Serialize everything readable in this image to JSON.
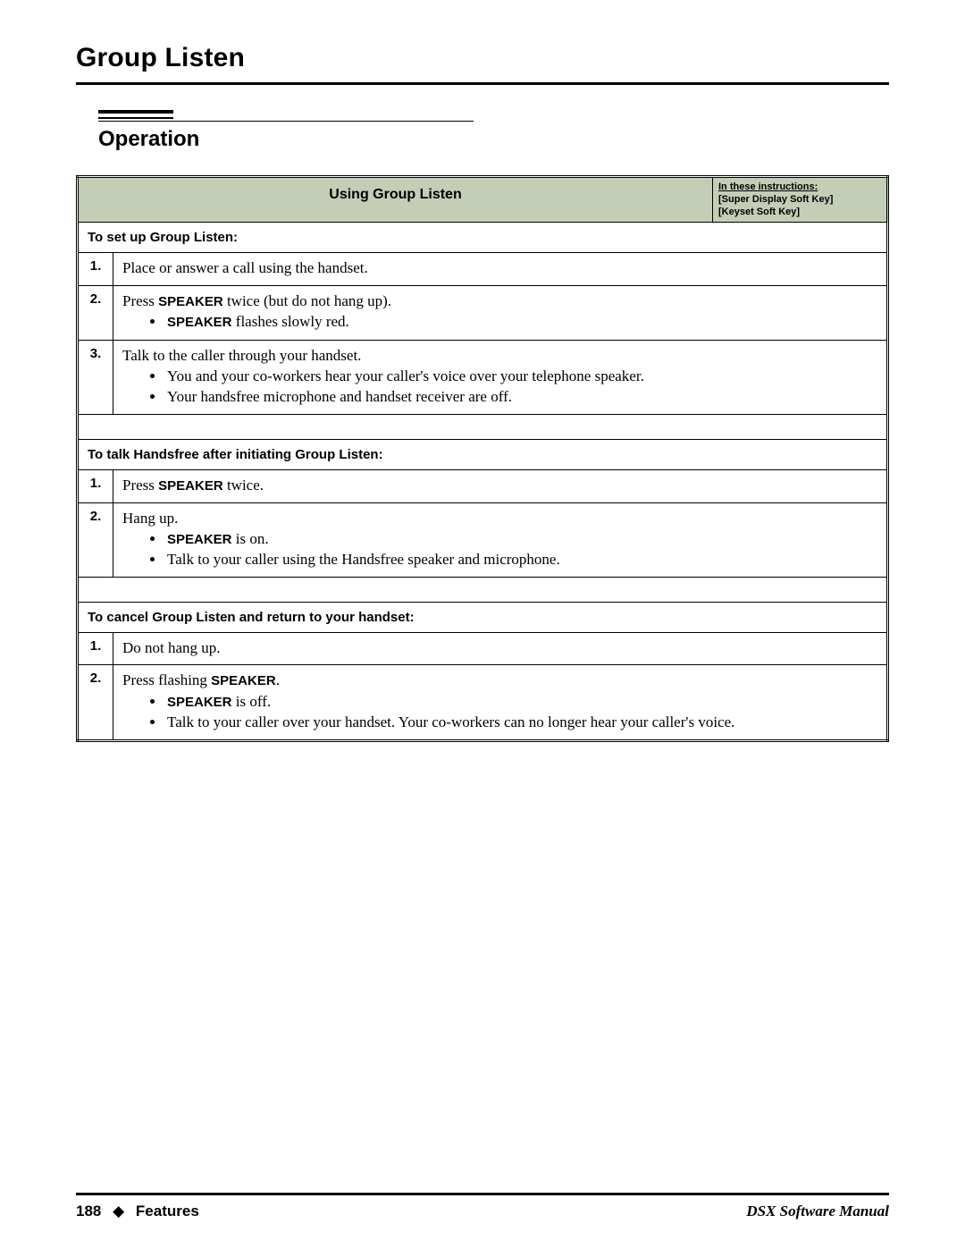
{
  "page_title": "Group Listen",
  "section_title": "Operation",
  "table": {
    "header_title": "Using Group Listen",
    "legend": {
      "line1": "In these instructions:",
      "line2": "[Super Display Soft Key]",
      "line3": "[Keyset Soft Key]"
    },
    "sections": [
      {
        "subheading": "To set up Group Listen:",
        "steps": [
          {
            "n": "1.",
            "text_html": "Place or answer a call using the handset."
          },
          {
            "n": "2.",
            "text_html": "Press <span class='sb'>SPEAKER</span> twice (but do not hang up).",
            "bullets_html": [
              "<span class='sb'>SPEAKER</span> flashes slowly red."
            ]
          },
          {
            "n": "3.",
            "text_html": "Talk to the caller through your handset.",
            "bullets_html": [
              "You and your co-workers hear your caller's voice over your telephone speaker.",
              "Your handsfree microphone and handset receiver are off."
            ]
          }
        ]
      },
      {
        "subheading": "To talk Handsfree after initiating Group Listen:",
        "steps": [
          {
            "n": "1.",
            "text_html": "Press <span class='sb'>SPEAKER</span> twice."
          },
          {
            "n": "2.",
            "text_html": "Hang up.",
            "bullets_html": [
              "<span class='sb'>SPEAKER</span> is on.",
              "Talk to your caller using the Handsfree speaker and microphone."
            ]
          }
        ]
      },
      {
        "subheading": "To cancel Group Listen and return to your handset:",
        "steps": [
          {
            "n": "1.",
            "text_html": "Do not hang up."
          },
          {
            "n": "2.",
            "text_html": "Press flashing <span class='sb'>SPEAKER</span>.",
            "bullets_html": [
              "<span class='sb'>SPEAKER</span> is off.",
              "Talk to your caller over your handset. Your co-workers can no longer hear your caller's voice."
            ]
          }
        ]
      }
    ]
  },
  "footer": {
    "page_number": "188",
    "diamond": "◆",
    "section": "Features",
    "manual": "DSX Software Manual"
  },
  "colors": {
    "header_bg": "#c4cdb6",
    "rule": "#000000",
    "text": "#000000",
    "page_bg": "#ffffff"
  }
}
